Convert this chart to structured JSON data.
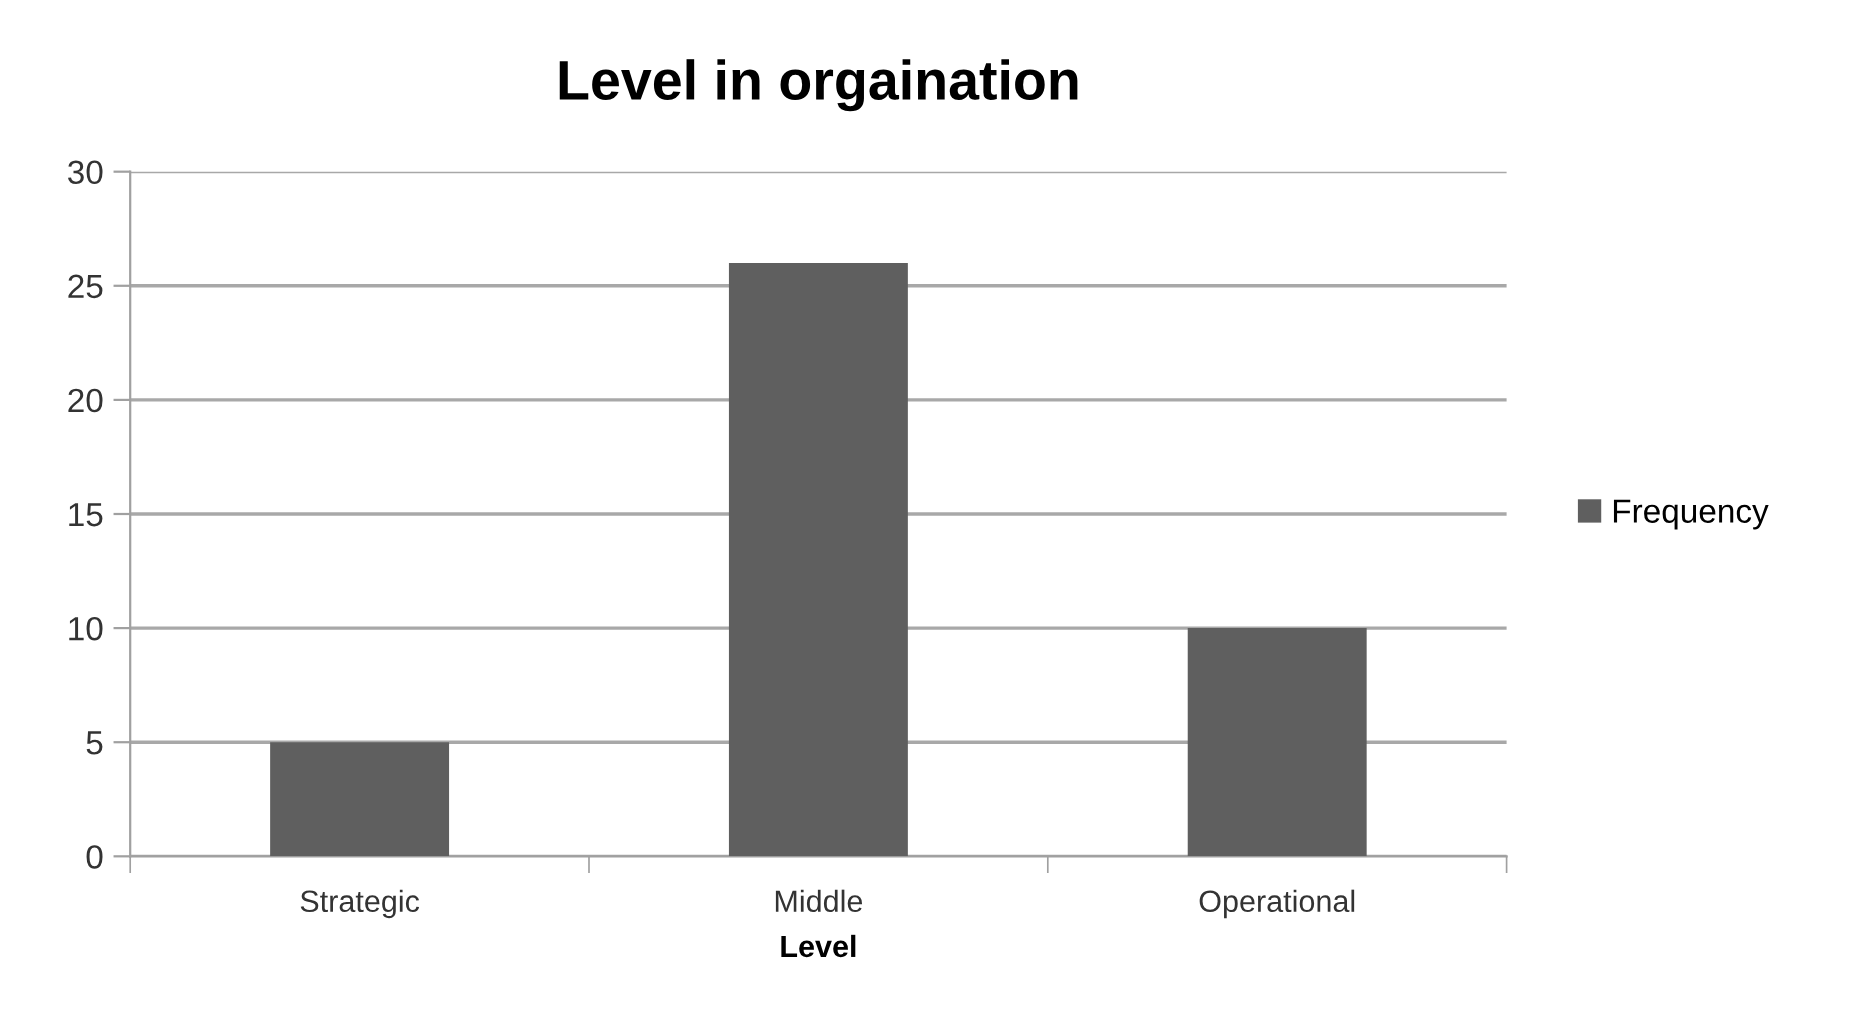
{
  "chart_data": {
    "type": "bar",
    "title": "Level in orgaination",
    "xlabel": "Level",
    "categories": [
      "Strategic",
      "Middle",
      "Operational"
    ],
    "series": [
      {
        "name": "Frequency",
        "color": "#5f5f5f",
        "values": [
          5,
          26,
          10
        ]
      }
    ],
    "ylim": [
      0,
      30
    ],
    "yticks": [
      0,
      5,
      10,
      15,
      20,
      25,
      30
    ],
    "grid": "y",
    "legend": "right"
  }
}
